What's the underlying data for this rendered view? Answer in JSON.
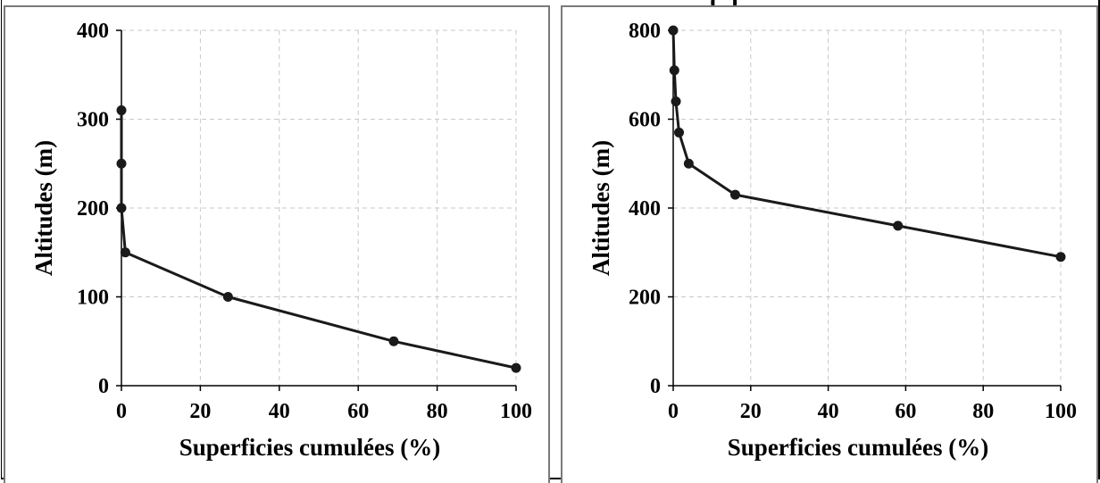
{
  "top_fragment": "(         )",
  "chart_data": [
    {
      "type": "line",
      "title": "",
      "xlabel": "Superficies cumulées (%)",
      "ylabel": "Altitudes (m)",
      "xlim": [
        0,
        100
      ],
      "ylim": [
        0,
        400
      ],
      "xticks": [
        0,
        20,
        40,
        60,
        80,
        100
      ],
      "yticks": [
        0,
        100,
        200,
        300,
        400
      ],
      "grid": true,
      "legend": "none",
      "series": [
        {
          "color": "#1a1a1a",
          "x": [
            0,
            0,
            0,
            1,
            27,
            69,
            100
          ],
          "y": [
            310,
            250,
            200,
            150,
            100,
            50,
            20
          ]
        }
      ]
    },
    {
      "type": "line",
      "title": "",
      "xlabel": "Superficies cumulées (%)",
      "ylabel": "Altitudes (m)",
      "xlim": [
        0,
        100
      ],
      "ylim": [
        0,
        800
      ],
      "xticks": [
        0,
        20,
        40,
        60,
        80,
        100
      ],
      "yticks": [
        0,
        200,
        400,
        600,
        800
      ],
      "grid": true,
      "legend": "none",
      "series": [
        {
          "color": "#1a1a1a",
          "x": [
            0,
            0.3,
            0.7,
            1.5,
            4,
            16,
            58,
            100
          ],
          "y": [
            800,
            710,
            640,
            570,
            500,
            430,
            360,
            290
          ]
        }
      ]
    }
  ]
}
